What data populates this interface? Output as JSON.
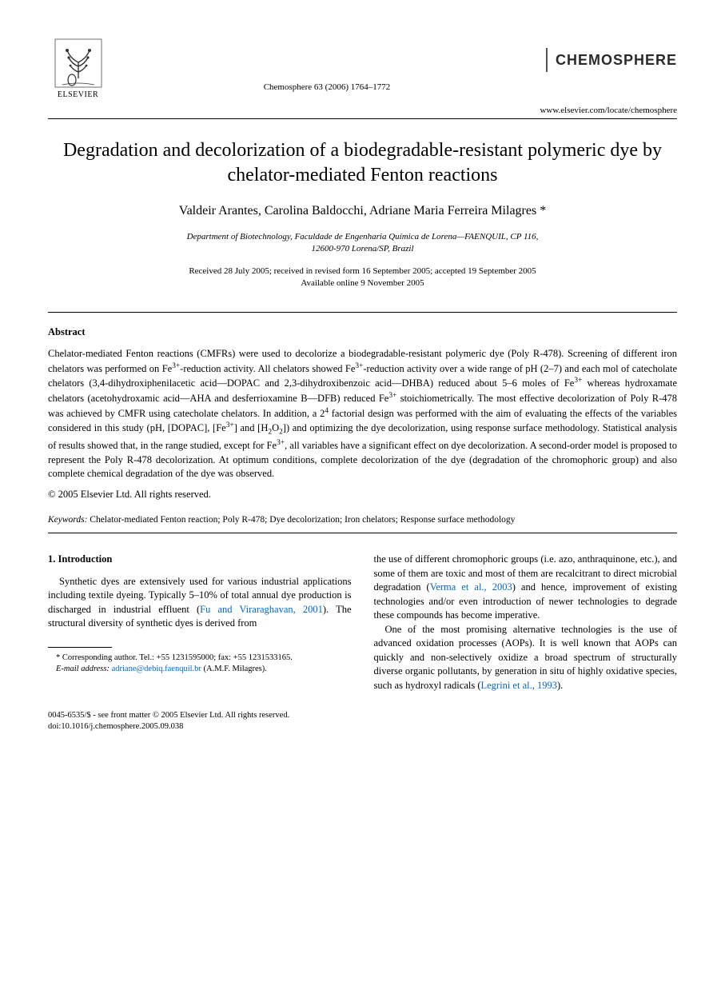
{
  "header": {
    "publisher": "ELSEVIER",
    "citation": "Chemosphere 63 (2006) 1764–1772",
    "brand": "CHEMOSPHERE",
    "url": "www.elsevier.com/locate/chemosphere"
  },
  "title": "Degradation and decolorization of a biodegradable-resistant polymeric dye by chelator-mediated Fenton reactions",
  "authors": "Valdeir Arantes, Carolina Baldocchi, Adriane Maria Ferreira Milagres *",
  "affiliation_line1": "Department of Biotechnology, Faculdade de Engenharia Química de Lorena—FAENQUIL, CP 116,",
  "affiliation_line2": "12600-970 Lorena/SP, Brazil",
  "dates_line1": "Received 28 July 2005; received in revised form 16 September 2005; accepted 19 September 2005",
  "dates_line2": "Available online 9 November 2005",
  "abstract": {
    "heading": "Abstract",
    "body_html": "Chelator-mediated Fenton reactions (CMFRs) were used to decolorize a biodegradable-resistant polymeric dye (Poly R-478). Screening of different iron chelators was performed on Fe<sup>3+</sup>-reduction activity. All chelators showed Fe<sup>3+</sup>-reduction activity over a wide range of pH (2–7) and each mol of catecholate chelators (3,4-dihydroxiphenilacetic acid—DOPAC and 2,3-dihydroxibenzoic acid—DHBA) reduced about 5–6 moles of Fe<sup>3+</sup> whereas hydroxamate chelators (acetohydroxamic acid—AHA and desferrioxamine B—DFB) reduced Fe<sup>3+</sup> stoichiometrically. The most effective decolorization of Poly R-478 was achieved by CMFR using catecholate chelators. In addition, a 2<sup>4</sup> factorial design was performed with the aim of evaluating the effects of the variables considered in this study (pH, [DOPAC], [Fe<sup>3+</sup>] and [H<sub>2</sub>O<sub>2</sub>]) and optimizing the dye decolorization, using response surface methodology. Statistical analysis of results showed that, in the range studied, except for Fe<sup>3+</sup>, all variables have a significant effect on dye decolorization. A second-order model is proposed to represent the Poly R-478 decolorization. At optimum conditions, complete decolorization of the dye (degradation of the chromophoric group) and also complete chemical degradation of the dye was observed.",
    "copyright": "© 2005 Elsevier Ltd. All rights reserved."
  },
  "keywords": {
    "label": "Keywords:",
    "text": " Chelator-mediated Fenton reaction; Poly R-478; Dye decolorization; Iron chelators; Response surface methodology"
  },
  "section1": {
    "heading": "1. Introduction",
    "p1_pre": "Synthetic dyes are extensively used for various industrial applications including textile dyeing. Typically 5–10% of total annual dye production is discharged in industrial effluent (",
    "p1_ref1": "Fu and Viraraghavan, 2001",
    "p1_post": "). The structural diversity of synthetic dyes is derived from",
    "col2_a": "the use of different chromophoric groups (i.e. azo, anthraquinone, etc.), and some of them are toxic and most of them are recalcitrant to direct microbial degradation (",
    "col2_ref1": "Verma et al., 2003",
    "col2_b": ") and hence, improvement of existing technologies and/or even introduction of newer technologies to degrade these compounds has become imperative.",
    "p2_a": "One of the most promising alternative technologies is the use of advanced oxidation processes (AOPs). It is well known that AOPs can quickly and non-selectively oxidize a broad spectrum of structurally diverse organic pollutants, by generation in situ of highly oxidative species, such as hydroxyl radicals (",
    "p2_ref1": "Legrini et al., 1993",
    "p2_b": ")."
  },
  "footnote": {
    "corr": "* Corresponding author. Tel.: +55 1231595000; fax: +55 1231533165.",
    "email_label": "E-mail address:",
    "email": "adriane@debiq.faenquil.br",
    "email_post": " (A.M.F. Milagres)."
  },
  "footer": {
    "line1": "0045-6535/$ - see front matter © 2005 Elsevier Ltd. All rights reserved.",
    "line2": "doi:10.1016/j.chemosphere.2005.09.038"
  },
  "colors": {
    "link": "#0066cc",
    "text": "#000000",
    "bg": "#ffffff"
  }
}
